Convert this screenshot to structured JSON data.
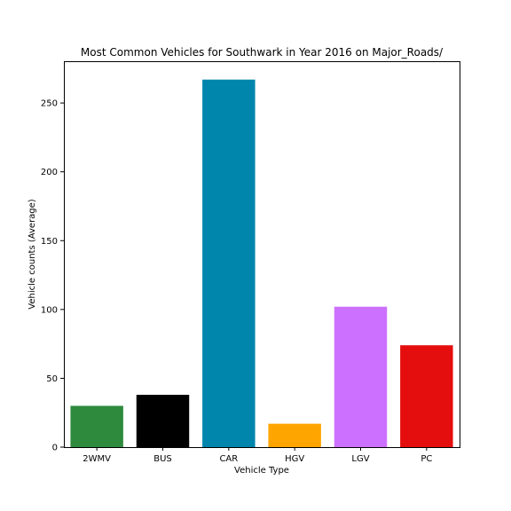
{
  "chart_data": {
    "type": "bar",
    "title": "Most Common Vehicles for Southwark in Year 2016 on Major_Roads/",
    "xlabel": "Vehicle Type",
    "ylabel": "Vehicle counts (Average)",
    "categories": [
      "2WMV",
      "BUS",
      "CAR",
      "HGV",
      "LGV",
      "PC"
    ],
    "values": [
      30,
      38,
      267,
      17,
      102,
      74
    ],
    "colors": [
      "#2e8b3e",
      "#000000",
      "#0086ad",
      "#ffa500",
      "#cc70ff",
      "#e50e0e"
    ],
    "ylim": [
      0,
      280.35
    ],
    "yticks": [
      0,
      50,
      100,
      150,
      200,
      250
    ],
    "grid": false
  }
}
